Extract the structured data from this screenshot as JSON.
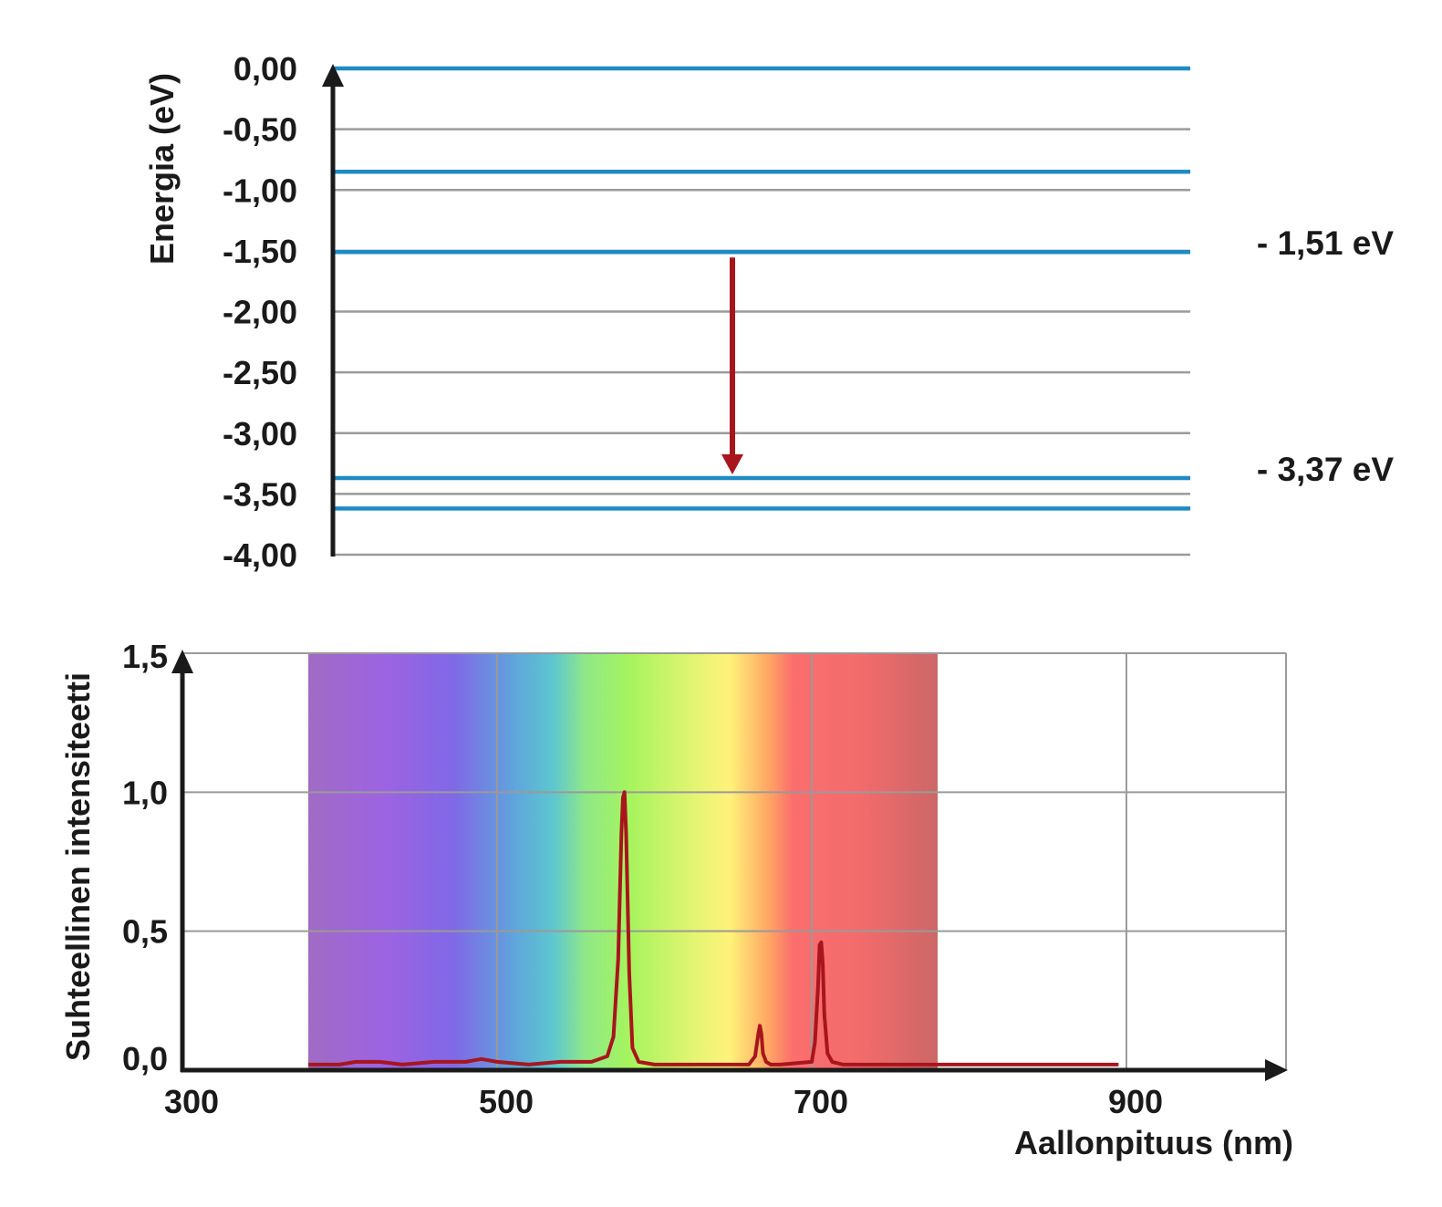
{
  "chart_data": [
    {
      "type": "energy-level-diagram",
      "ylabel": "Energia (eV)",
      "ylim": [
        -4.0,
        0.0
      ],
      "yticks": [
        "0,00",
        "-0,50",
        "-1,00",
        "-1,50",
        "-2,00",
        "-2,50",
        "-3,00",
        "-3,50",
        "-4,00"
      ],
      "ytick_values": [
        0.0,
        -0.5,
        -1.0,
        -1.5,
        -2.0,
        -2.5,
        -3.0,
        -3.5,
        -4.0
      ],
      "grid": true,
      "levels": [
        0.0,
        -0.85,
        -1.51,
        -3.37,
        -3.62
      ],
      "labeled_levels": [
        {
          "value": -1.51,
          "label": "- 1,51 eV"
        },
        {
          "value": -3.37,
          "label": "- 3,37 eV"
        }
      ],
      "transition": {
        "from": -1.51,
        "to": -3.37
      },
      "colors": {
        "level": "#1e8bc3",
        "grid": "#9a9a9a",
        "transition": "#a8151d",
        "axis": "#1a1a1a"
      }
    },
    {
      "type": "line",
      "xlabel": "Aallonpituus (nm)",
      "ylabel": "Suhteellinen intensiteetti",
      "xlim": [
        300,
        1000
      ],
      "ylim": [
        0.0,
        1.5
      ],
      "xticks": [
        "300",
        "500",
        "700",
        "900"
      ],
      "xtick_values": [
        300,
        500,
        700,
        900
      ],
      "yticks": [
        "0,0",
        "0,5",
        "1,0",
        "1,5"
      ],
      "ytick_values": [
        0.0,
        0.5,
        1.0,
        1.5
      ],
      "grid": true,
      "visible_spectrum_band": [
        380,
        780
      ],
      "series": [
        {
          "color": "#a8151d",
          "x": [
            380,
            400,
            410,
            425,
            440,
            460,
            480,
            490,
            500,
            520,
            540,
            560,
            570,
            574,
            577,
            579,
            580,
            581,
            582,
            584,
            586,
            590,
            600,
            620,
            640,
            660,
            664,
            666,
            667,
            668,
            669,
            671,
            674,
            680,
            700,
            702,
            704,
            705,
            706,
            707,
            708,
            710,
            713,
            720,
            740,
            760,
            780,
            800,
            820,
            840,
            860,
            880,
            895
          ],
          "values": [
            0.02,
            0.02,
            0.03,
            0.03,
            0.02,
            0.03,
            0.03,
            0.04,
            0.03,
            0.02,
            0.03,
            0.03,
            0.05,
            0.12,
            0.4,
            0.85,
            0.98,
            1.0,
            0.85,
            0.35,
            0.08,
            0.03,
            0.02,
            0.02,
            0.02,
            0.02,
            0.05,
            0.13,
            0.16,
            0.13,
            0.06,
            0.03,
            0.02,
            0.02,
            0.03,
            0.1,
            0.3,
            0.45,
            0.46,
            0.38,
            0.2,
            0.06,
            0.03,
            0.02,
            0.02,
            0.02,
            0.02,
            0.02,
            0.02,
            0.02,
            0.02,
            0.02,
            0.02
          ]
        }
      ]
    }
  ]
}
